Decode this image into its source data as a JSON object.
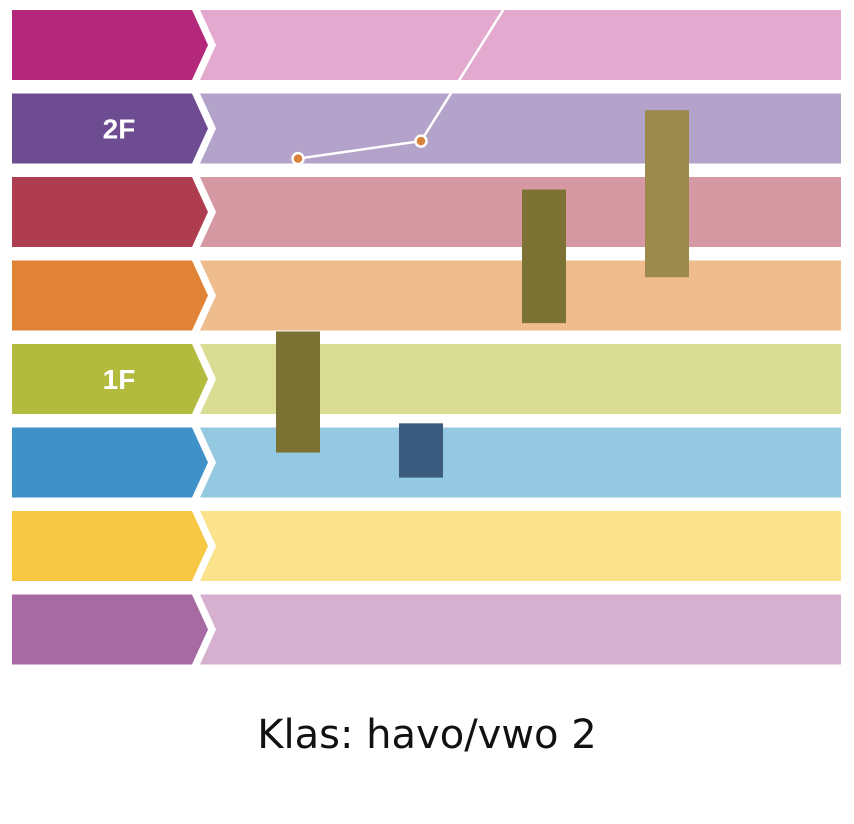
{
  "caption": "Klas: havo/vwo 2",
  "chart_data": {
    "type": "bar",
    "levels": [
      "",
      "2F",
      "",
      "",
      "1F",
      "",
      "",
      ""
    ],
    "level_colors": [
      {
        "arrow": "#b3287a",
        "band": "#e3a9cf"
      },
      {
        "arrow": "#6e4c92",
        "band": "#b3a2c9"
      },
      {
        "arrow": "#ae3d50",
        "band": "#d699a3"
      },
      {
        "arrow": "#e08336",
        "band": "#eebc8d"
      },
      {
        "arrow": "#b3bb3f",
        "band": "#d9dc93"
      },
      {
        "arrow": "#3f92c8",
        "band": "#95c9e1"
      },
      {
        "arrow": "#f6c844",
        "band": "#fbe38c"
      },
      {
        "arrow": "#a86aa2",
        "band": "#d6b1cf"
      }
    ],
    "bars": [
      {
        "low": 2.7,
        "high": 4.15,
        "color": "#7b7233"
      },
      {
        "low": 2.4,
        "high": 3.05,
        "color": "#3a5a7e"
      },
      {
        "low": 4.25,
        "high": 5.85,
        "color": "#7b7233"
      },
      {
        "low": 4.8,
        "high": 6.8,
        "color": "#9b8a4c"
      }
    ],
    "line": [
      {
        "x": 1,
        "y": 6.22
      },
      {
        "x": 2,
        "y": 6.43
      },
      {
        "x": 3,
        "y": 8.78
      }
    ],
    "point_colors": [
      "#d8823a",
      "#d8823a",
      "#6e4c92"
    ],
    "line_color": "#ffffff"
  }
}
